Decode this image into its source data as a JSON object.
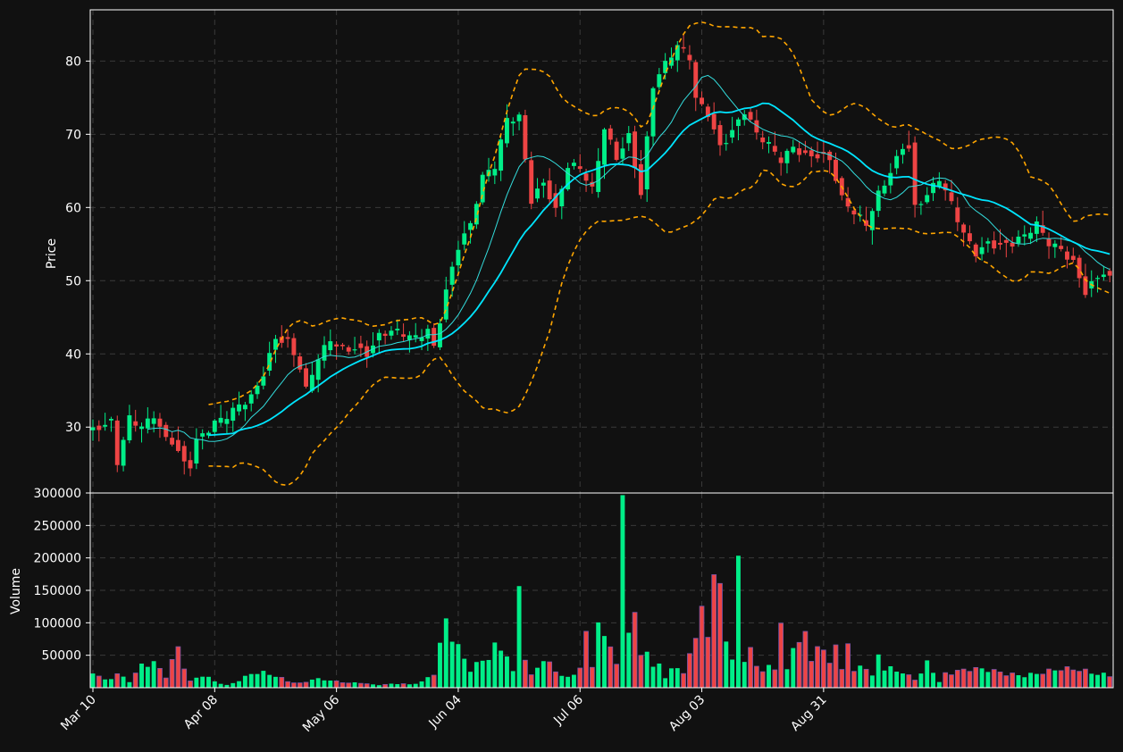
{
  "colors": {
    "background": "#111111",
    "up": "#00ee88",
    "down": "#ee4444",
    "bollinger": "#ffa500",
    "ma_fast": "#33dddd",
    "ma_slow": "#00e5ff",
    "grid": "#3a3a3a",
    "axis": "#ffffff"
  },
  "chart_data": {
    "type": "candlestick",
    "x_tick_labels": [
      "Mar 10",
      "Apr 08",
      "May 06",
      "Jun 04",
      "Jul 06",
      "Aug 03",
      "Aug 31"
    ],
    "x_tick_index": [
      0,
      20,
      40,
      60,
      80,
      100,
      120
    ],
    "price_panel": {
      "ylabel": "Price",
      "ylim": [
        21,
        87
      ],
      "yticks": [
        30,
        40,
        50,
        60,
        70,
        80
      ],
      "grid": true
    },
    "volume_panel": {
      "ylabel": "Volume",
      "ylim": [
        0,
        300000
      ],
      "yticks": [
        50000,
        100000,
        150000,
        200000,
        250000,
        300000
      ],
      "grid": true
    },
    "overlays": [
      {
        "name": "bollinger_upper",
        "style": "dashed",
        "color_key": "bollinger"
      },
      {
        "name": "bollinger_lower",
        "style": "dashed",
        "color_key": "bollinger"
      },
      {
        "name": "ma_fast",
        "style": "solid",
        "color_key": "ma_fast"
      },
      {
        "name": "ma_slow",
        "style": "solid",
        "color_key": "ma_slow"
      }
    ],
    "anchors": {
      "close": [
        [
          0,
          29.5
        ],
        [
          3,
          30
        ],
        [
          4,
          24.5
        ],
        [
          6,
          30.8
        ],
        [
          8,
          30.2
        ],
        [
          10,
          32.3
        ],
        [
          12,
          29
        ],
        [
          13,
          28.6
        ],
        [
          15,
          25
        ],
        [
          16,
          24.5
        ],
        [
          17,
          27.5
        ],
        [
          19,
          29
        ],
        [
          20,
          30
        ],
        [
          22,
          31.5
        ],
        [
          24,
          33.5
        ],
        [
          26,
          34.8
        ],
        [
          28,
          37.8
        ],
        [
          30,
          42
        ],
        [
          32,
          41
        ],
        [
          34,
          37.5
        ],
        [
          35,
          34.5
        ],
        [
          37,
          39.5
        ],
        [
          39,
          42.5
        ],
        [
          41,
          41.3
        ],
        [
          43,
          41.2
        ],
        [
          45,
          39.8
        ],
        [
          47,
          41.8
        ],
        [
          49,
          42.5
        ],
        [
          51,
          42.5
        ],
        [
          53,
          42.5
        ],
        [
          55,
          44
        ],
        [
          56,
          41.5
        ],
        [
          58,
          49
        ],
        [
          60,
          54.5
        ],
        [
          62,
          57
        ],
        [
          64,
          63.5
        ],
        [
          66,
          65.5
        ],
        [
          68,
          72.5
        ],
        [
          70,
          73
        ],
        [
          72,
          61.5
        ],
        [
          74,
          63.5
        ],
        [
          76,
          59
        ],
        [
          78,
          65
        ],
        [
          80,
          65
        ],
        [
          82,
          62.5
        ],
        [
          84,
          71.5
        ],
        [
          86,
          67.5
        ],
        [
          88,
          70
        ],
        [
          90,
          61.5
        ],
        [
          92,
          76
        ],
        [
          94,
          79
        ],
        [
          96,
          82
        ],
        [
          98,
          81
        ],
        [
          99,
          75.5
        ],
        [
          101,
          73.5
        ],
        [
          103,
          68.5
        ],
        [
          105,
          70
        ],
        [
          107,
          72.5
        ],
        [
          109,
          69.5
        ],
        [
          111,
          68.5
        ],
        [
          113,
          67
        ],
        [
          115,
          69
        ],
        [
          117,
          67.5
        ],
        [
          119,
          67
        ],
        [
          121,
          66
        ],
        [
          123,
          60.5
        ],
        [
          125,
          59
        ],
        [
          127,
          58
        ],
        [
          129,
          62.5
        ],
        [
          131,
          65.5
        ],
        [
          133,
          68.5
        ],
        [
          134,
          68
        ],
        [
          135,
          59.5
        ],
        [
          137,
          61
        ],
        [
          139,
          63.5
        ],
        [
          141,
          60.5
        ],
        [
          143,
          57
        ],
        [
          145,
          54.5
        ],
        [
          147,
          55.5
        ],
        [
          149,
          54.5
        ],
        [
          151,
          54.5
        ],
        [
          153,
          55.5
        ],
        [
          155,
          57.5
        ],
        [
          157,
          55.5
        ],
        [
          159,
          55
        ],
        [
          161,
          53
        ],
        [
          163,
          48.5
        ],
        [
          165,
          50
        ],
        [
          166,
          50.5
        ],
        [
          167,
          49.5
        ]
      ],
      "volume": [
        [
          0,
          24000
        ],
        [
          2,
          13000
        ],
        [
          4,
          26000
        ],
        [
          6,
          12000
        ],
        [
          8,
          34000
        ],
        [
          10,
          33000
        ],
        [
          12,
          14000
        ],
        [
          14,
          55000
        ],
        [
          16,
          10000
        ],
        [
          18,
          25000
        ],
        [
          20,
          12000
        ],
        [
          22,
          4000
        ],
        [
          24,
          10000
        ],
        [
          26,
          18000
        ],
        [
          28,
          20000
        ],
        [
          30,
          18000
        ],
        [
          32,
          12000
        ],
        [
          34,
          8000
        ],
        [
          36,
          15000
        ],
        [
          38,
          12000
        ],
        [
          40,
          8000
        ],
        [
          42,
          6000
        ],
        [
          44,
          7000
        ],
        [
          46,
          5000
        ],
        [
          48,
          6000
        ],
        [
          50,
          8000
        ],
        [
          52,
          5000
        ],
        [
          54,
          8000
        ],
        [
          56,
          18000
        ],
        [
          58,
          90000
        ],
        [
          60,
          62000
        ],
        [
          62,
          35000
        ],
        [
          64,
          52000
        ],
        [
          66,
          68000
        ],
        [
          68,
          50000
        ],
        [
          69,
          20000
        ],
        [
          70,
          135000
        ],
        [
          71,
          38000
        ],
        [
          72,
          15000
        ],
        [
          74,
          42000
        ],
        [
          76,
          30000
        ],
        [
          78,
          18000
        ],
        [
          80,
          38000
        ],
        [
          81,
          83000
        ],
        [
          82,
          35000
        ],
        [
          83,
          95000
        ],
        [
          84,
          62000
        ],
        [
          85,
          58000
        ],
        [
          86,
          30000
        ],
        [
          87,
          228000
        ],
        [
          88,
          85000
        ],
        [
          89,
          110000
        ],
        [
          90,
          47000
        ],
        [
          91,
          75000
        ],
        [
          92,
          38000
        ],
        [
          93,
          42000
        ],
        [
          94,
          22000
        ],
        [
          95,
          33000
        ],
        [
          96,
          30000
        ],
        [
          97,
          25000
        ],
        [
          98,
          45000
        ],
        [
          99,
          62000
        ],
        [
          100,
          118000
        ],
        [
          101,
          60000
        ],
        [
          102,
          143000
        ],
        [
          103,
          165000
        ],
        [
          104,
          63000
        ],
        [
          105,
          45000
        ],
        [
          106,
          278000
        ],
        [
          107,
          43000
        ],
        [
          108,
          78000
        ],
        [
          109,
          48000
        ],
        [
          110,
          25000
        ],
        [
          111,
          38000
        ],
        [
          112,
          30000
        ],
        [
          113,
          80000
        ],
        [
          114,
          25000
        ],
        [
          115,
          55000
        ],
        [
          116,
          52000
        ],
        [
          117,
          78000
        ],
        [
          118,
          40000
        ],
        [
          119,
          55000
        ],
        [
          120,
          68000
        ],
        [
          121,
          48000
        ],
        [
          122,
          70000
        ],
        [
          123,
          40000
        ],
        [
          124,
          88000
        ],
        [
          125,
          25000
        ],
        [
          126,
          40000
        ],
        [
          127,
          28000
        ],
        [
          128,
          15000
        ],
        [
          129,
          48000
        ],
        [
          130,
          22000
        ],
        [
          131,
          25000
        ],
        [
          132,
          24000
        ],
        [
          133,
          20000
        ],
        [
          134,
          18000
        ],
        [
          135,
          15000
        ],
        [
          136,
          25000
        ],
        [
          137,
          47000
        ],
        [
          138,
          35000
        ],
        [
          139,
          10000
        ],
        [
          140,
          24000
        ]
      ]
    }
  }
}
